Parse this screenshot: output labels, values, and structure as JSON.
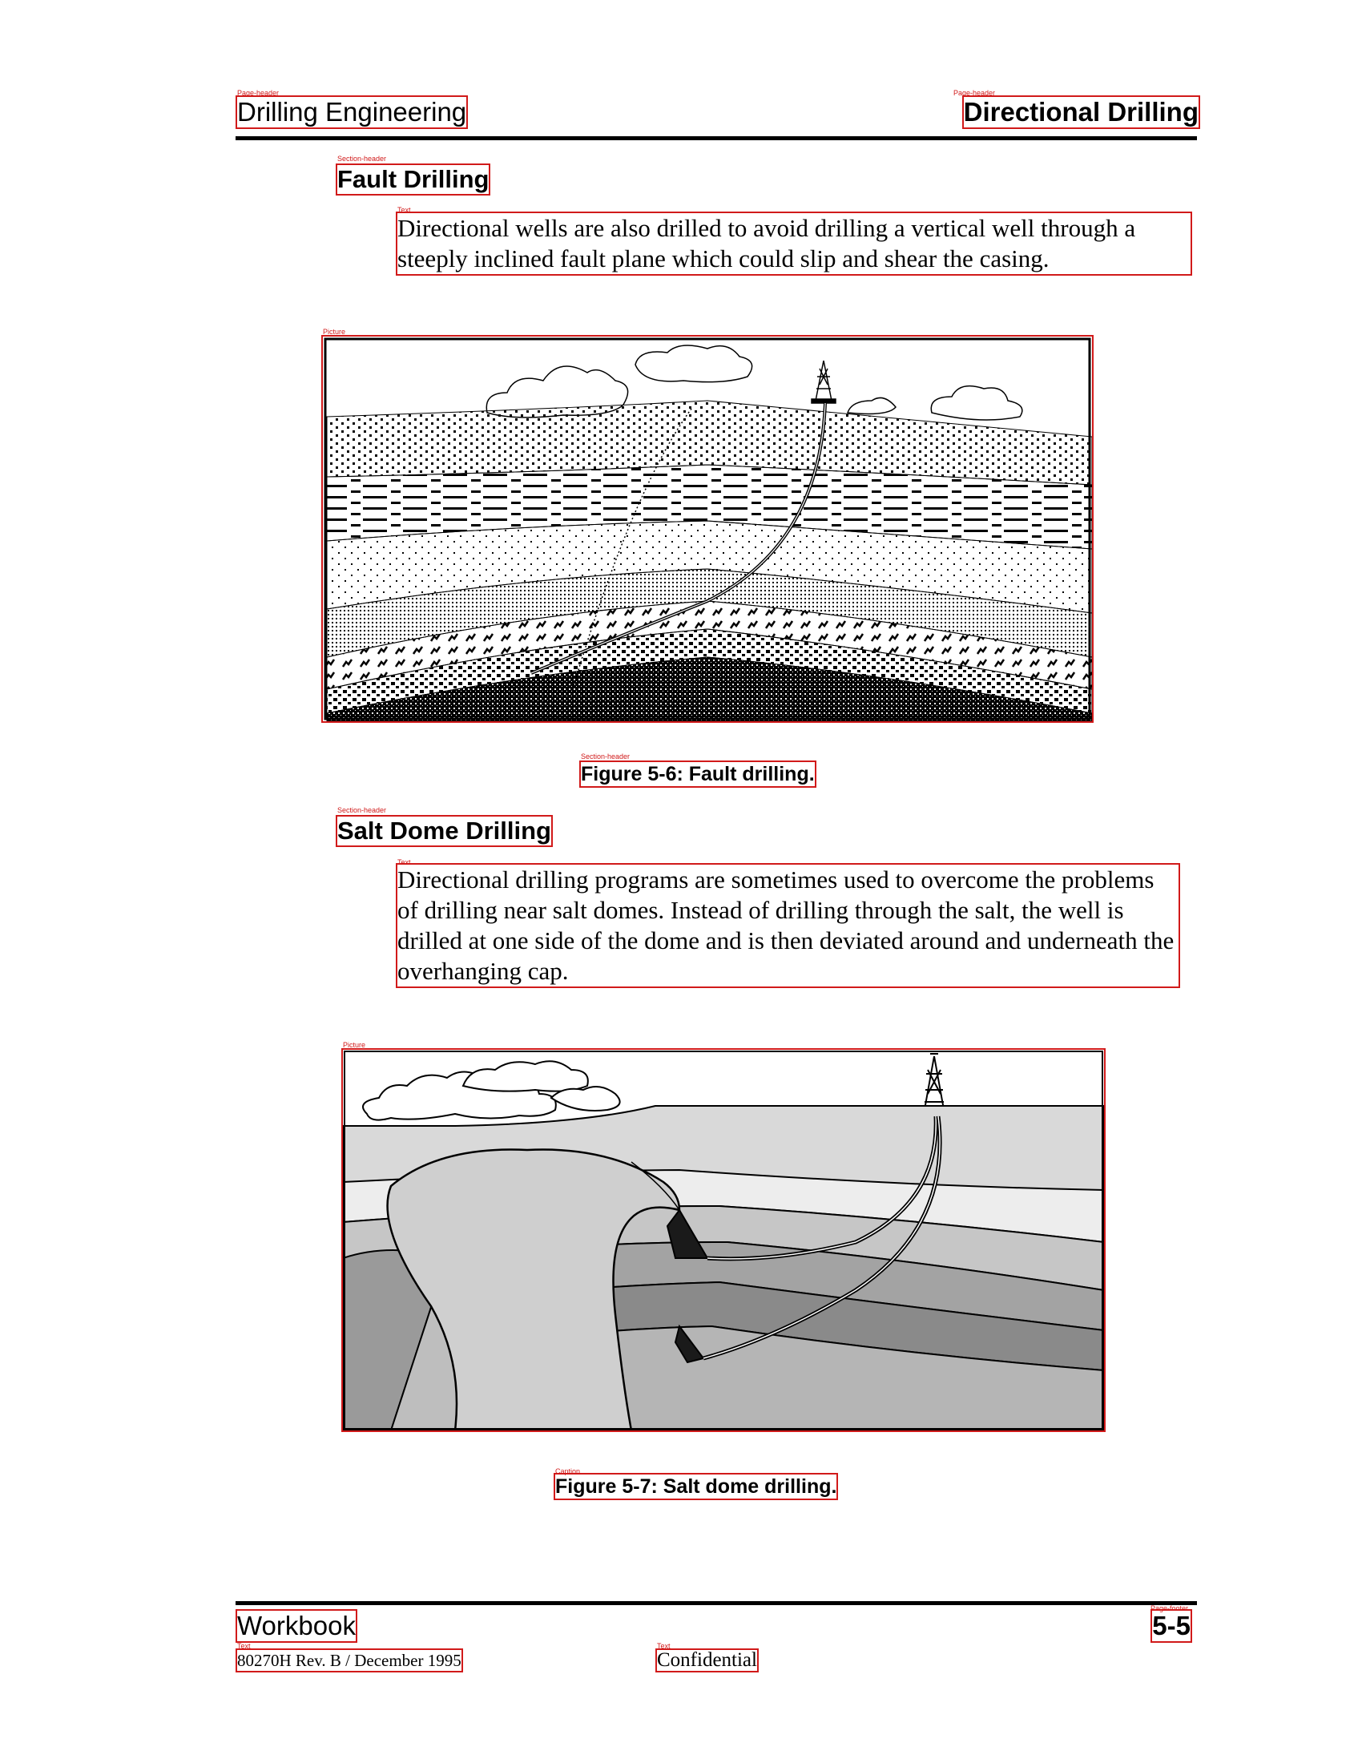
{
  "header": {
    "left_title": "Drilling Engineering",
    "right_title": "Directional Drilling"
  },
  "sections": {
    "fault": {
      "heading": "Fault Drilling",
      "body": "Directional wells are also drilled to avoid drilling a vertical well through a steeply inclined fault plane which could slip and shear the casing.",
      "figure_caption": "Figure 5-6: Fault drilling."
    },
    "salt": {
      "heading": "Salt Dome Drilling",
      "body": "Directional drilling programs are sometimes used to overcome the problems of drilling near salt domes. Instead of drilling through the salt, the well is drilled at one side of the dome and is then deviated around and underneath the overhanging cap.",
      "figure_caption": "Figure 5-7: Salt dome drilling."
    }
  },
  "footer": {
    "workbook": "Workbook",
    "page_number": "5-5",
    "revision": "80270H Rev. B / December 1995",
    "confidential": "Confidential"
  },
  "annotation_tags": {
    "page_header": "Page-header",
    "section_header": "Section-header",
    "text": "Text",
    "picture": "Picture",
    "caption": "Caption",
    "page_footer": "Page-footer"
  },
  "colors": {
    "annotation_box": "#d11a1a",
    "rule": "#000000"
  }
}
